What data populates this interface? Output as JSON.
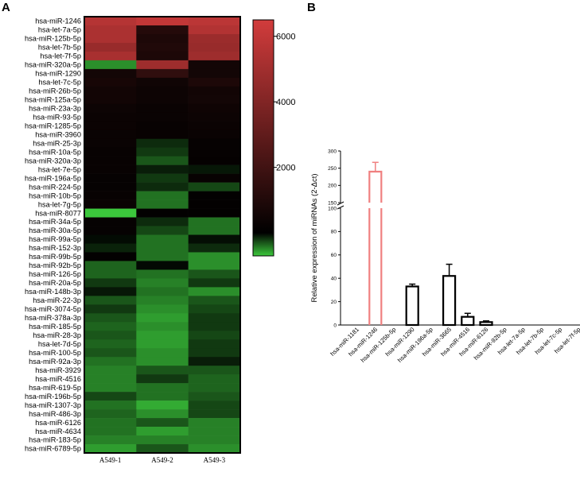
{
  "panels": {
    "a": "A",
    "b": "B"
  },
  "chart_data": [
    {
      "type": "heatmap",
      "columns": [
        "A549-1",
        "A549-2",
        "A549-3"
      ],
      "rows": [
        "hsa-miR-1246",
        "hsa-let-7a-5p",
        "hsa-miR-125b-5p",
        "hsa-let-7b-5p",
        "hsa-let-7f-5p",
        "hsa-miR-320a-5p",
        "hsa-miR-1290",
        "hsa-let-7c-5p",
        "hsa-miR-26b-5p",
        "hsa-miR-125a-5p",
        "hsa-miR-23a-3p",
        "hsa-miR-93-5p",
        "hsa-miR-1285-5p",
        "hsa-miR-3960",
        "hsa-miR-25-3p",
        "hsa-miR-10a-5p",
        "hsa-miR-320a-3p",
        "hsa-let-7e-5p",
        "hsa-miR-196a-5p",
        "hsa-miR-224-5p",
        "hsa-miR-10b-5p",
        "hsa-let-7g-5p",
        "hsa-miR-8077",
        "hsa-miR-34a-5p",
        "hsa-miR-30a-5p",
        "hsa-miR-99a-5p",
        "hsa-miR-152-3p",
        "hsa-miR-99b-5p",
        "hsa-miR-92b-5p",
        "hsa-miR-126-5p",
        "hsa-miR-20a-5p",
        "hsa-miR-148b-3p",
        "hsa-miR-22-3p",
        "hsa-miR-3074-5p",
        "hsa-miR-378a-3p",
        "hsa-miR-185-5p",
        "hsa-miR-28-3p",
        "hsa-let-7d-5p",
        "hsa-miR-100-5p",
        "hsa-miR-92a-3p",
        "hsa-miR-3929",
        "hsa-miR-4516",
        "hsa-miR-619-5p",
        "hsa-miR-196b-5p",
        "hsa-miR-1307-3p",
        "hsa-miR-486-3p",
        "hsa-miR-6126",
        "hsa-miR-4634",
        "hsa-miR-183-5p",
        "hsa-miR-6789-5p"
      ],
      "values": [
        [
          5600,
          6000,
          5800
        ],
        [
          5300,
          1100,
          5500
        ],
        [
          5300,
          900,
          4800
        ],
        [
          4700,
          1000,
          4700
        ],
        [
          5200,
          900,
          4900
        ],
        [
          -500,
          4900,
          600
        ],
        [
          600,
          1500,
          600
        ],
        [
          700,
          500,
          900
        ],
        [
          550,
          400,
          550
        ],
        [
          550,
          400,
          600
        ],
        [
          400,
          300,
          450
        ],
        [
          350,
          300,
          400
        ],
        [
          350,
          250,
          350
        ],
        [
          300,
          250,
          300
        ],
        [
          300,
          -150,
          200
        ],
        [
          250,
          -200,
          200
        ],
        [
          250,
          -300,
          150
        ],
        [
          250,
          -100,
          -80
        ],
        [
          200,
          -200,
          250
        ],
        [
          200,
          -150,
          -250
        ],
        [
          250,
          -400,
          100
        ],
        [
          300,
          -400,
          100
        ],
        [
          -700,
          100,
          100
        ],
        [
          200,
          -150,
          -400
        ],
        [
          200,
          -250,
          -400
        ],
        [
          -40,
          -400,
          -50
        ],
        [
          -120,
          -400,
          -150
        ],
        [
          100,
          -400,
          -500
        ],
        [
          -350,
          -30,
          -500
        ],
        [
          -350,
          -400,
          -300
        ],
        [
          -200,
          -450,
          -200
        ],
        [
          -80,
          -400,
          -500
        ],
        [
          -300,
          -450,
          -300
        ],
        [
          -200,
          -500,
          -250
        ],
        [
          -300,
          -550,
          -200
        ],
        [
          -350,
          -500,
          -200
        ],
        [
          -300,
          -550,
          -250
        ],
        [
          -350,
          -550,
          -200
        ],
        [
          -300,
          -500,
          -200
        ],
        [
          -400,
          -500,
          -100
        ],
        [
          -450,
          -300,
          -300
        ],
        [
          -450,
          -200,
          -350
        ],
        [
          -450,
          -400,
          -350
        ],
        [
          -250,
          -400,
          -300
        ],
        [
          -400,
          -600,
          -250
        ],
        [
          -350,
          -500,
          -250
        ],
        [
          -400,
          -300,
          -450
        ],
        [
          -400,
          -550,
          -450
        ],
        [
          -450,
          -450,
          -450
        ],
        [
          -550,
          -300,
          -500
        ]
      ],
      "colorbar": {
        "ticks": [
          "2000",
          "4000",
          "6000"
        ],
        "min": -700,
        "max": 6500,
        "colors": [
          "#3cc83c",
          "#000000",
          "#d23c3c"
        ]
      }
    },
    {
      "type": "bar",
      "categories": [
        "hsa-miR-1181",
        "hsa-miR-1246",
        "hsa-miR-125b-5p",
        "hsa-miR-1290",
        "hsa-miR-196a-5p",
        "hsa-miR-3665",
        "hsa-miR-4516",
        "hsa-miR-6126",
        "hsa-miR-92b-5p",
        "hsa-let-7a-5p",
        "hsa-let-7b-5p",
        "hsa-let-7c-5p",
        "hsa-let-7f-5p"
      ],
      "values": [
        0,
        240,
        0,
        33,
        0,
        42,
        7,
        2.5,
        0,
        0,
        0,
        0,
        0
      ],
      "errors": [
        0,
        27,
        0,
        2,
        0,
        10,
        3,
        1,
        0,
        0,
        0,
        0,
        0
      ],
      "highlight_color": "#f08080",
      "ylabel": "Relative expression of miRNAs (2-Δct)",
      "yticks_lower": [
        "0",
        "20",
        "40",
        "60",
        "80",
        "100"
      ],
      "yticks_upper": [
        "150",
        "200",
        "250",
        "300"
      ],
      "axis_break": [
        100,
        150
      ]
    }
  ]
}
